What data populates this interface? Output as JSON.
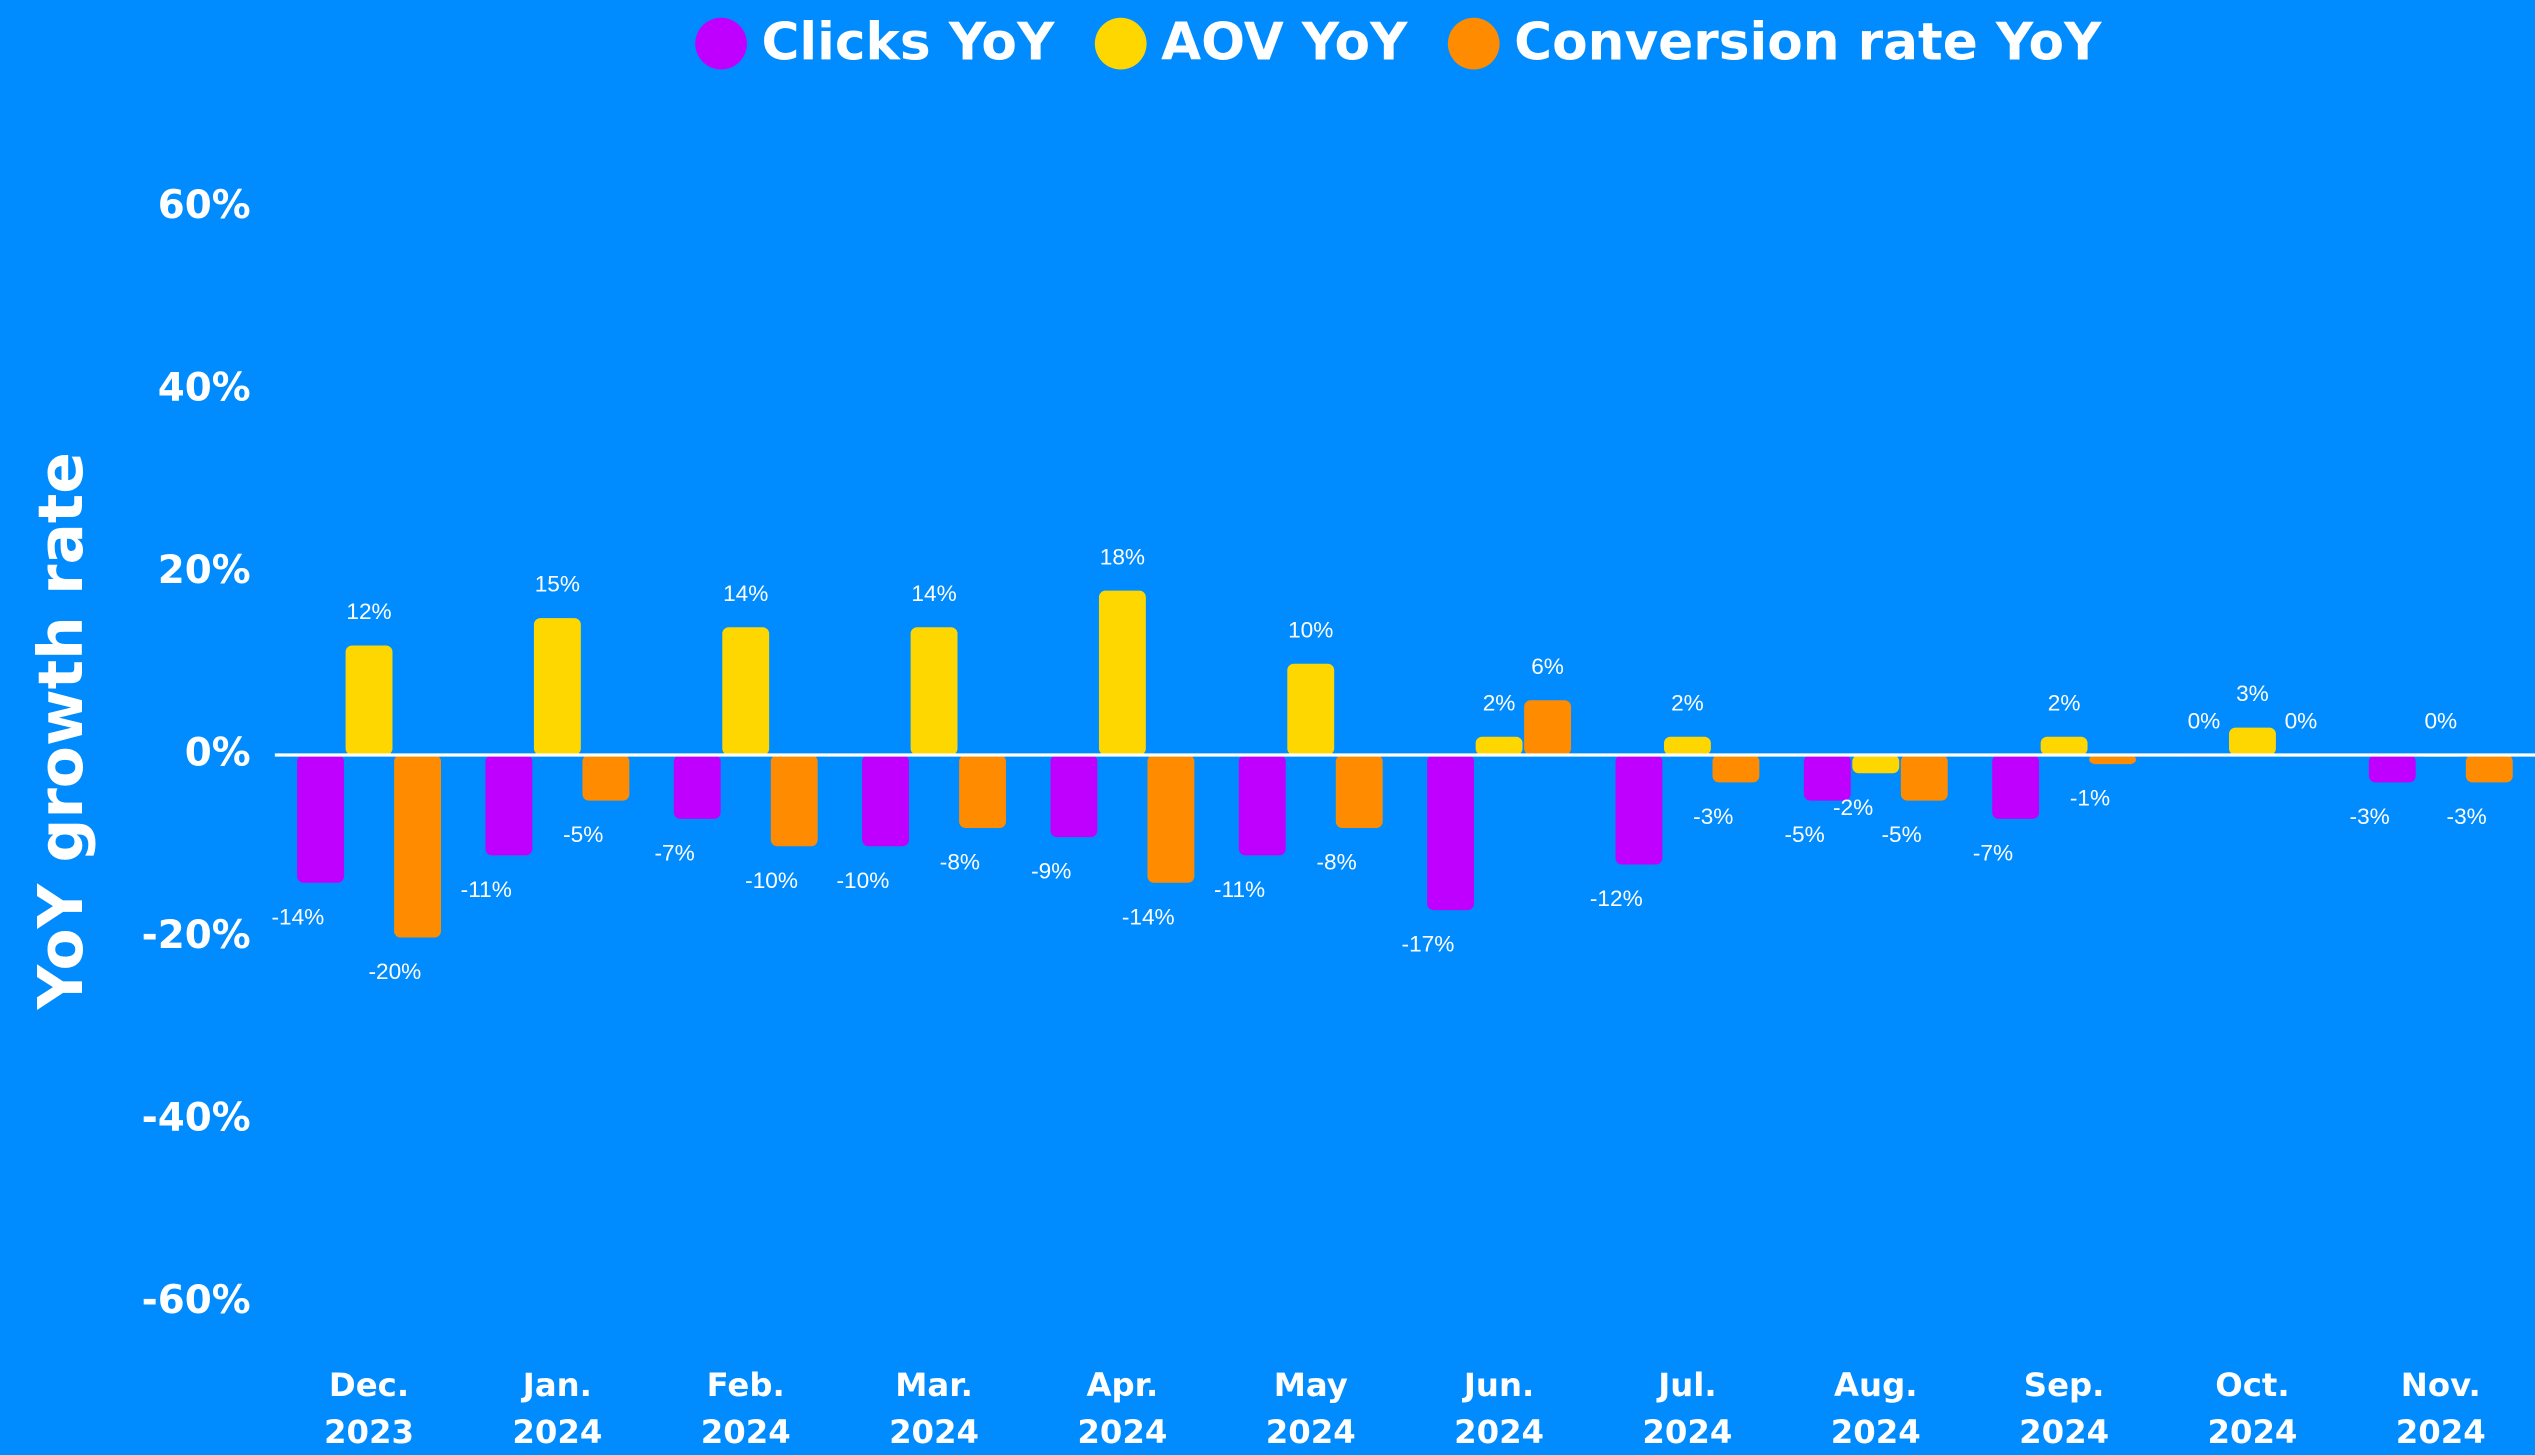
{
  "chart_data": {
    "type": "bar",
    "y_label": "YoY growth rate",
    "categories": [
      "Dec. 2023",
      "Jan. 2024",
      "Feb. 2024",
      "Mar. 2024",
      "Apr. 2024",
      "May 2024",
      "Jun. 2024",
      "Jul. 2024",
      "Aug. 2024",
      "Sep. 2024",
      "Oct. 2024",
      "Nov. 2024"
    ],
    "series": [
      {
        "name": "Clicks YoY",
        "color": "#c000ff",
        "values": [
          -14,
          -11,
          -7,
          -10,
          -9,
          -11,
          -17,
          -12,
          -5,
          -7,
          0,
          -3
        ],
        "value_labels": [
          "-14%",
          "-11%",
          "-7%",
          "-10%",
          "-9%",
          "-11%",
          "-17%",
          "-12%",
          "-5%",
          "-7%",
          "0%",
          "-3%"
        ]
      },
      {
        "name": "AOV YoY",
        "color": "#ffd700",
        "values": [
          12,
          15,
          14,
          14,
          18,
          10,
          2,
          2,
          -2,
          2,
          3,
          0
        ],
        "value_labels": [
          "12%",
          "15%",
          "14%",
          "14%",
          "18%",
          "10%",
          "2%",
          "2%",
          "-2%",
          "2%",
          "3%",
          "0%"
        ]
      },
      {
        "name": "Conversion rate YoY",
        "color": "#ff8c00",
        "values": [
          -20,
          -5,
          -10,
          -8,
          -14,
          -8,
          6,
          -3,
          -5,
          -1,
          0,
          -3
        ],
        "value_labels": [
          "-20%",
          "-5%",
          "-10%",
          "-8%",
          "-14%",
          "-8%",
          "6%",
          "-3%",
          "-5%",
          "-1%",
          "0%",
          "-3%"
        ]
      }
    ],
    "ylim": [
      -65,
      65
    ],
    "yticks": [
      {
        "value": -60,
        "label": "-60%"
      },
      {
        "value": -40,
        "label": "-40%"
      },
      {
        "value": -20,
        "label": "-20%"
      },
      {
        "value": 0,
        "label": "0%"
      },
      {
        "value": 20,
        "label": "20%"
      },
      {
        "value": 40,
        "label": "40%"
      },
      {
        "value": 60,
        "label": "60%"
      }
    ],
    "legend": "top"
  }
}
